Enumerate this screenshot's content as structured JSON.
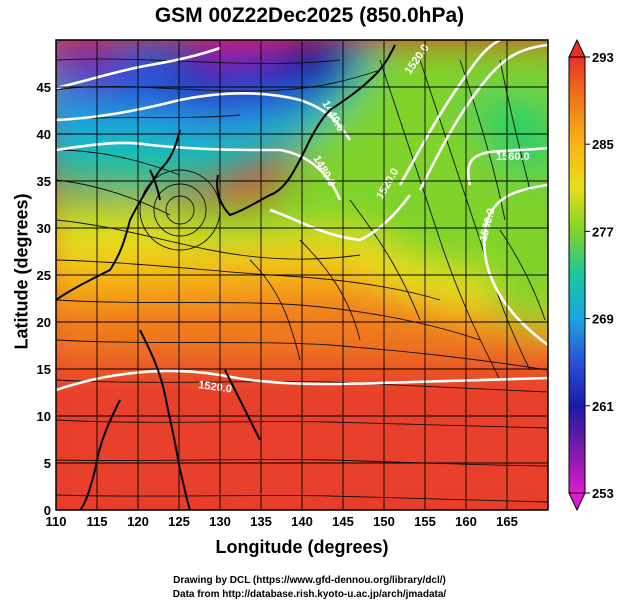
{
  "title": "GSM 00Z22Dec2025 (850.0hPa)",
  "xlabel": "Longitude (degrees)",
  "ylabel": "Latitude  (degrees)",
  "credit_line1": "Drawing by DCL (https://www.gfd-dennou.org/library/dcl/)",
  "credit_line2": "Data from http://database.rish.kyoto-u.ac.jp/arch/jmadata/",
  "x_ticks": [
    "110",
    "115",
    "120",
    "125",
    "130",
    "135",
    "140",
    "145",
    "150",
    "155",
    "160",
    "165"
  ],
  "y_ticks": [
    "0",
    "5",
    "10",
    "15",
    "20",
    "25",
    "30",
    "35",
    "40",
    "45"
  ],
  "colorbar_labels": [
    "293",
    "285",
    "277",
    "269",
    "261",
    "253"
  ],
  "contour_labels": [
    "1440.0",
    "1480.0",
    "1520.0",
    "1560.0"
  ],
  "chart_data": {
    "type": "heatmap",
    "xlim": [
      110,
      170
    ],
    "ylim": [
      0,
      50
    ],
    "field": "temperature (K), 850 hPa",
    "colorbar": {
      "min": 253,
      "max": 293,
      "ticks": [
        293,
        285,
        277,
        269,
        261,
        253
      ]
    },
    "colors": {
      "293": "#e8302a",
      "289": "#f07a1a",
      "285": "#f7b417",
      "281": "#e6df1a",
      "277": "#7fd32a",
      "273": "#19c6a0",
      "269": "#1aa6e0",
      "265": "#2c4fd6",
      "261": "#1a1aa8",
      "257": "#7a1aa8",
      "253": "#e01ad0"
    },
    "contours": [
      {
        "label": "1440.0",
        "lon": 143,
        "lat": 42
      },
      {
        "label": "1480.0",
        "lon": 143,
        "lat": 36
      },
      {
        "label": "1520.0",
        "lon": 130,
        "lat": 13
      },
      {
        "label": "1520.0",
        "lon": 151,
        "lat": 45
      },
      {
        "label": "1520.0",
        "lon": 148,
        "lat": 32
      },
      {
        "label": "1560.0",
        "lon": 165,
        "lat": 36
      },
      {
        "label": "1560.0",
        "lon": 163,
        "lat": 27
      }
    ]
  }
}
